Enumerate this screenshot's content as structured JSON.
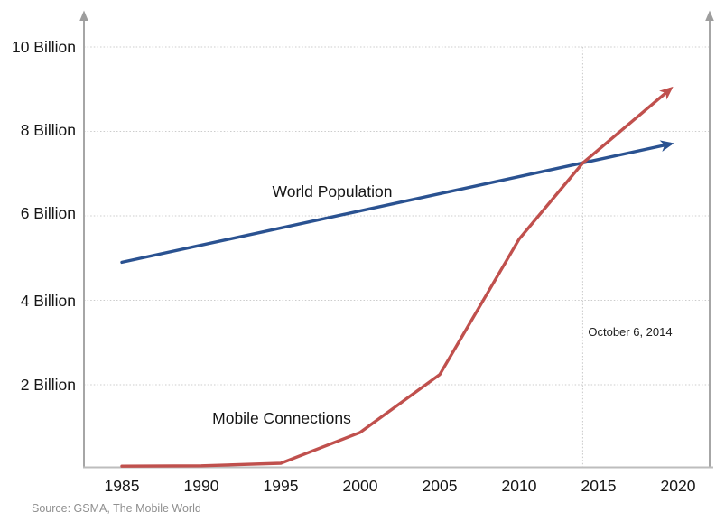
{
  "source_note": "Source: GSMA, The Mobile World",
  "chart_data": {
    "type": "line",
    "title": "",
    "xlabel": "",
    "ylabel": "",
    "grid": "horizontal-dotted",
    "legend_position": "inline-labels-on-plot",
    "axes": {
      "x_tick_years": [
        1985,
        1990,
        1995,
        2000,
        2005,
        2010,
        2015,
        2020
      ],
      "y_unit": "Billion",
      "ylim": [
        0,
        10.7
      ],
      "axis_color": "#a6a6a6",
      "grid_color": "#cccccc"
    },
    "x_ticks": [
      "1985",
      "1990",
      "1995",
      "2000",
      "2005",
      "2010",
      "2015",
      "2020"
    ],
    "y_ticks": [
      {
        "value": 10,
        "label": "10 Billion"
      },
      {
        "value": 8,
        "label": "8 Billion"
      },
      {
        "value": 6,
        "label": "6 Billion"
      },
      {
        "value": 4,
        "label": "4 Billion"
      },
      {
        "value": 2,
        "label": "2 Billion"
      }
    ],
    "series": [
      {
        "name": "World Population",
        "color": "#2a5291",
        "points": [
          [
            1985,
            4.9
          ],
          [
            2019.5,
            7.7
          ]
        ]
      },
      {
        "name": "Mobile Connections",
        "color": "#c0504d",
        "points": [
          [
            1985,
            0.07
          ],
          [
            1990,
            0.08
          ],
          [
            1995,
            0.14
          ],
          [
            2000,
            0.87
          ],
          [
            2005,
            2.24
          ],
          [
            2010,
            5.45
          ],
          [
            2014,
            7.25
          ],
          [
            2019.5,
            9.0
          ]
        ]
      }
    ],
    "annotation": {
      "label": "October 6, 2014",
      "year": 2014
    }
  }
}
